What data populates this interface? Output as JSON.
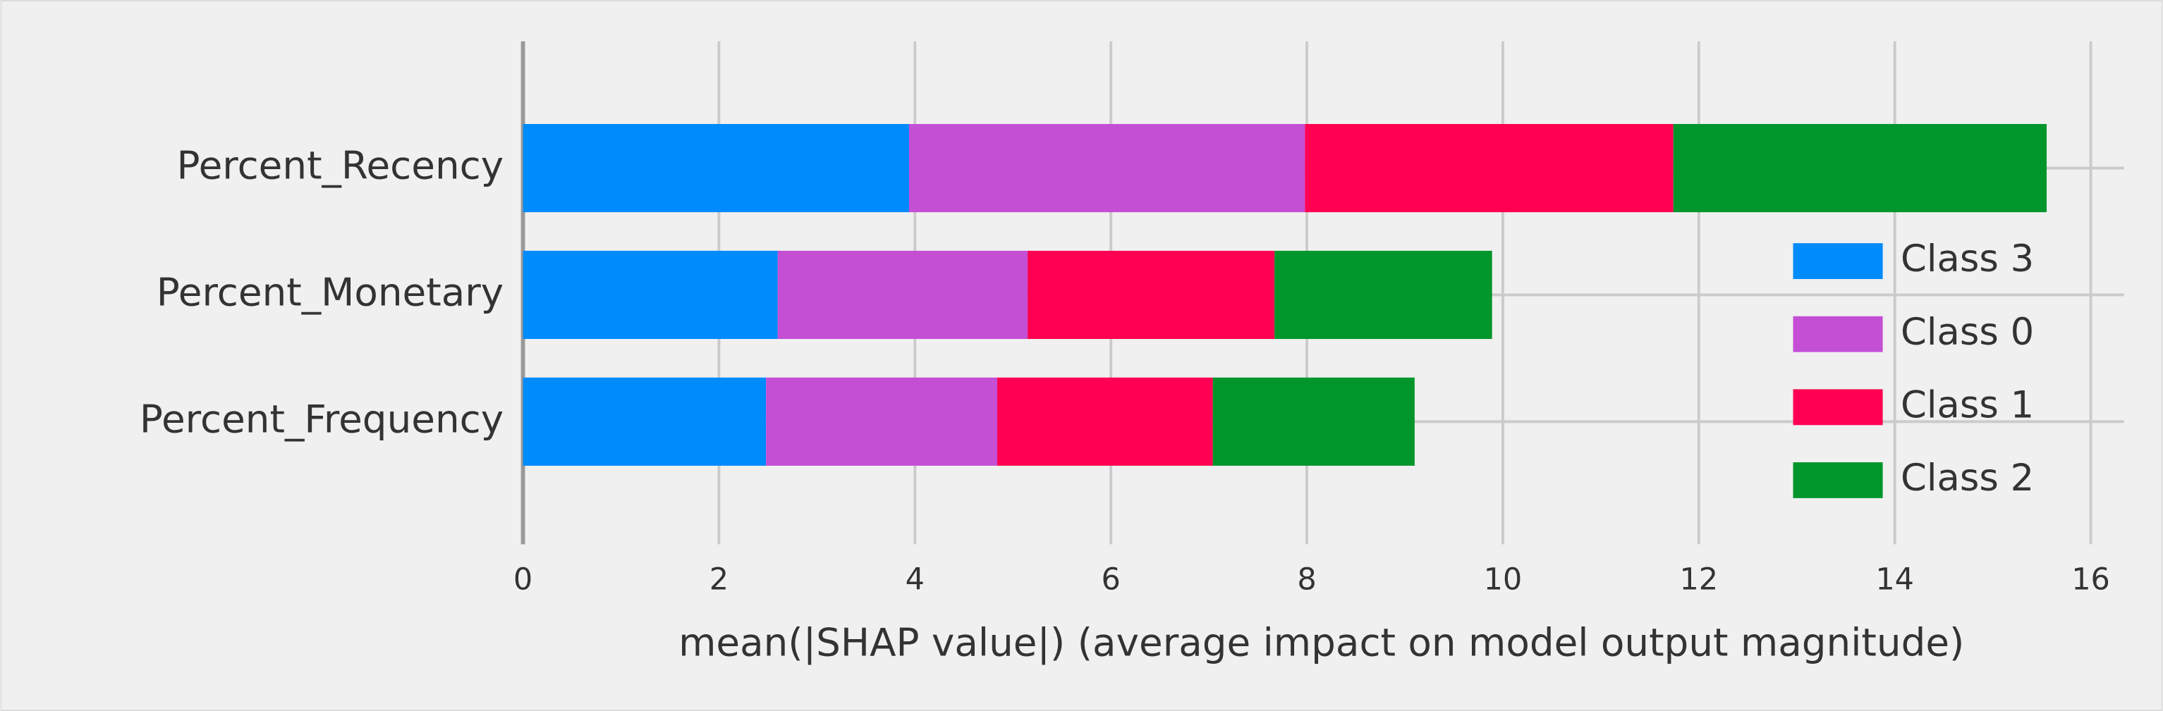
{
  "chart_data": {
    "type": "stacked_barh",
    "categories": [
      "Percent_Recency",
      "Percent_Monetary",
      "Percent_Frequency"
    ],
    "series": [
      {
        "name": "Class 3",
        "color": "#008bfb",
        "values": [
          3.94,
          2.6,
          2.48
        ]
      },
      {
        "name": "Class 0",
        "color": "#c44fd5",
        "values": [
          4.04,
          2.55,
          2.36
        ]
      },
      {
        "name": "Class 1",
        "color": "#ff0052",
        "values": [
          3.76,
          2.52,
          2.2
        ]
      },
      {
        "name": "Class 2",
        "color": "#00962b",
        "values": [
          3.81,
          2.22,
          2.06
        ]
      }
    ],
    "xlabel": "mean(|SHAP value|) (average impact on model output magnitude)",
    "xlim": [
      0,
      16.34
    ],
    "xticks": [
      0,
      2,
      4,
      6,
      8,
      10,
      12,
      14,
      16
    ],
    "grid": true,
    "legend": "lower right"
  }
}
